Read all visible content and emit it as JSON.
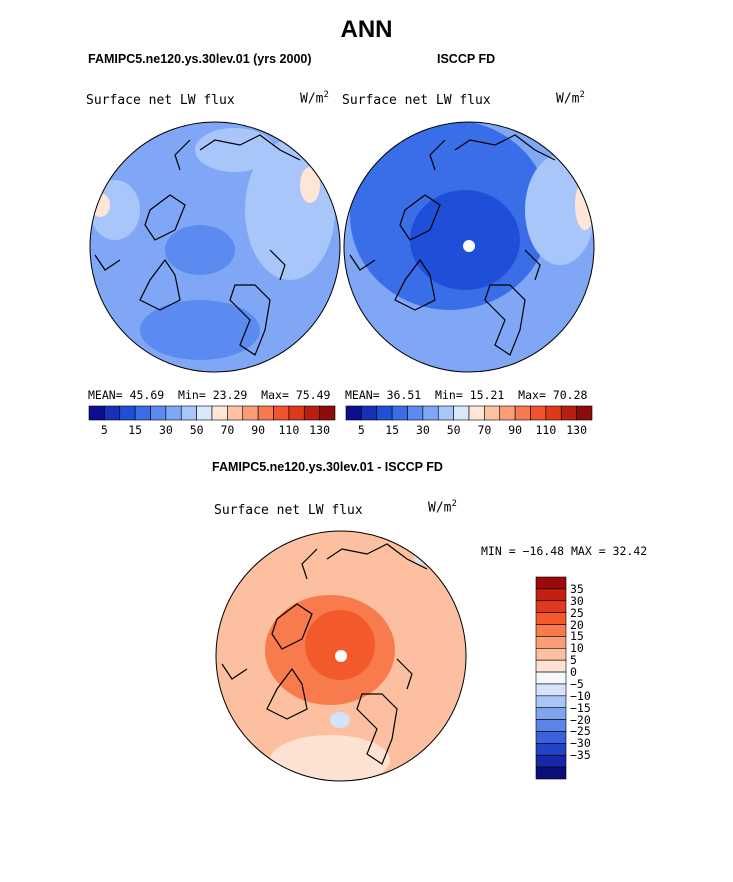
{
  "title": "ANN",
  "panels": [
    {
      "case_title": "FAMIPC5.ne120.ys.30lev.01 (yrs 2000)",
      "plot_title": "Surface net LW flux",
      "units_base": "W/m",
      "units_exp": "2",
      "stats": {
        "mean_label": "MEAN=",
        "mean": "45.69",
        "min_label": "Min=",
        "min": "23.29",
        "max_label": "Max=",
        "max": "75.49"
      }
    },
    {
      "case_title": "ISCCP FD",
      "plot_title": "Surface net LW flux",
      "units_base": "W/m",
      "units_exp": "2",
      "stats": {
        "mean_label": "MEAN=",
        "mean": "36.51",
        "min_label": "Min=",
        "min": "15.21",
        "max_label": "Max=",
        "max": "70.28"
      }
    }
  ],
  "top_colorbar": {
    "colors": [
      "#0b0f8f",
      "#1730b8",
      "#1f4fd8",
      "#3a6ee8",
      "#5b8bf0",
      "#7fa7f5",
      "#a9c6fa",
      "#d8e8fc",
      "#ffe5d6",
      "#fcc2a3",
      "#fb9e78",
      "#f7794f",
      "#f0552f",
      "#dd3a1b",
      "#b81f10",
      "#8c0c0c"
    ],
    "tick_labels": [
      "5",
      "15",
      "30",
      "50",
      "70",
      "90",
      "110",
      "130"
    ]
  },
  "diff_panel": {
    "case_title": "FAMIPC5.ne120.ys.30lev.01 - ISCCP FD",
    "plot_title": "Surface net LW flux",
    "units_base": "W/m",
    "units_exp": "2",
    "minmax": "MIN = −16.48 MAX =   32.42"
  },
  "diff_colorbar": {
    "colors_top_to_bottom": [
      "#990b0b",
      "#c41f10",
      "#e03a1c",
      "#f25a2c",
      "#f77b4d",
      "#fb9d76",
      "#fcbfa0",
      "#fde2d3",
      "#f5f7fb",
      "#d3e3fb",
      "#a9c6f7",
      "#7fa5ef",
      "#5a84e8",
      "#3a62dc",
      "#2243c8",
      "#1528a6",
      "#0b0f7c"
    ],
    "tick_labels": [
      "35",
      "30",
      "25",
      "20",
      "15",
      "10",
      "5",
      "0",
      "−5",
      "−10",
      "−15",
      "−20",
      "−25",
      "−30",
      "−35"
    ]
  },
  "map_colors": {
    "panel1_base": "#7fa7f5",
    "panel1_light": "#a9c6fa",
    "panel1_mid": "#5b8bf0",
    "panel2_base": "#7fa7f5",
    "panel2_dark": "#3a6ee8",
    "panel2_core": "#1f4fd8",
    "diff_base": "#fcbfa0",
    "diff_mid": "#f77b4d",
    "diff_core": "#f25a2c",
    "diff_light": "#fde2d3",
    "pole_hole": "#ffffff",
    "coast": "#000000"
  }
}
